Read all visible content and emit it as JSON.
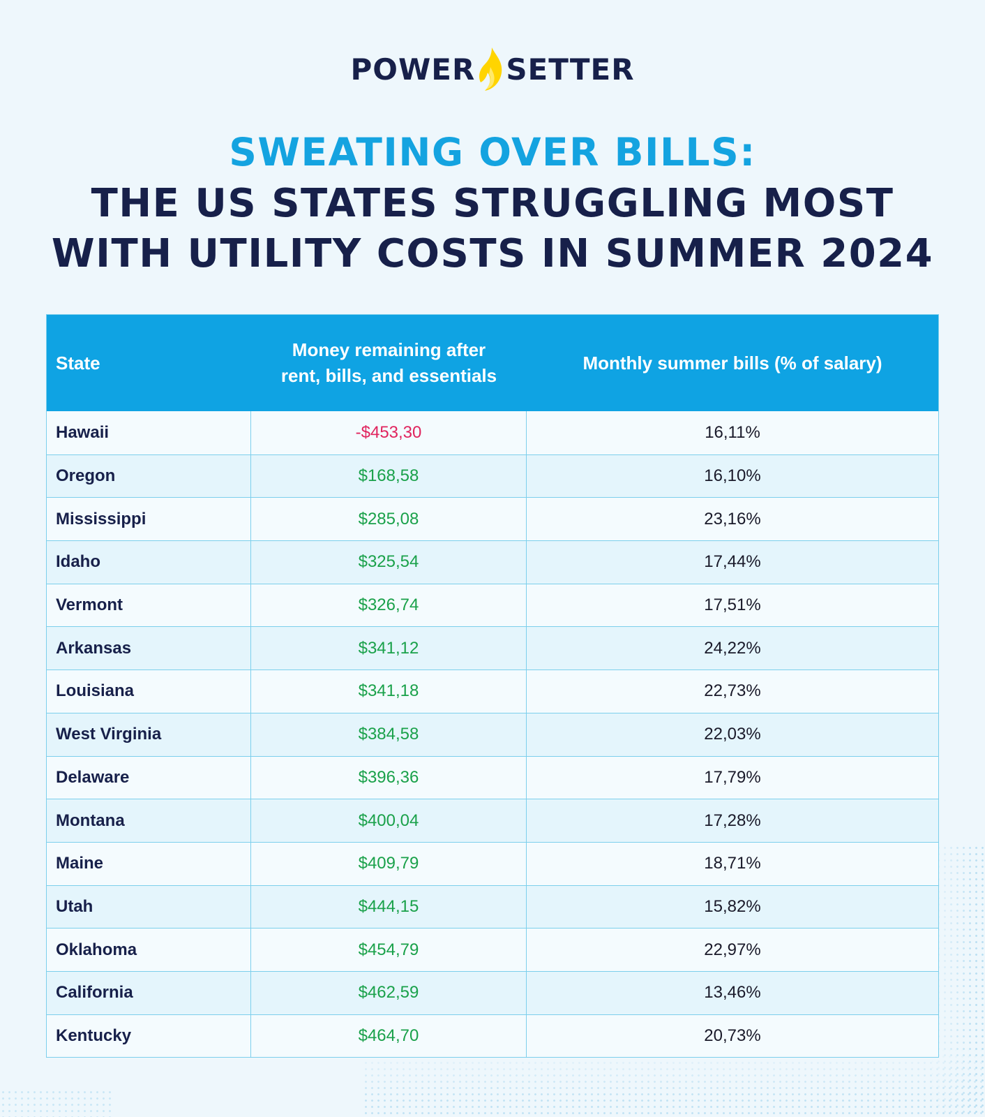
{
  "brand": {
    "part1": "POWER",
    "part2": "SETTER",
    "colors": {
      "navy": "#17204a",
      "blue": "#14a3e0",
      "flame": "#ffd400"
    }
  },
  "title": {
    "line1": "SWEATING OVER BILLS:",
    "line2": "THE US STATES STRUGGLING MOST",
    "line3": "WITH UTILITY COSTS IN SUMMER 2024"
  },
  "chart_data": {
    "type": "table",
    "columns": [
      "State",
      "Money remaining after\nrent, bills, and essentials",
      "Monthly summer bills (% of salary)"
    ],
    "rows": [
      {
        "state": "Hawaii",
        "money": "-$453,30",
        "pct": "16,11%",
        "negative": true
      },
      {
        "state": "Oregon",
        "money": "$168,58",
        "pct": "16,10%"
      },
      {
        "state": "Mississippi",
        "money": "$285,08",
        "pct": "23,16%"
      },
      {
        "state": "Idaho",
        "money": "$325,54",
        "pct": "17,44%"
      },
      {
        "state": "Vermont",
        "money": "$326,74",
        "pct": "17,51%"
      },
      {
        "state": "Arkansas",
        "money": "$341,12",
        "pct": "24,22%"
      },
      {
        "state": "Louisiana",
        "money": "$341,18",
        "pct": "22,73%"
      },
      {
        "state": "West Virginia",
        "money": "$384,58",
        "pct": "22,03%"
      },
      {
        "state": "Delaware",
        "money": "$396,36",
        "pct": "17,79%"
      },
      {
        "state": "Montana",
        "money": "$400,04",
        "pct": "17,28%"
      },
      {
        "state": "Maine",
        "money": "$409,79",
        "pct": "18,71%"
      },
      {
        "state": "Utah",
        "money": "$444,15",
        "pct": "15,82%"
      },
      {
        "state": "Oklahoma",
        "money": "$454,79",
        "pct": "22,97%"
      },
      {
        "state": "California",
        "money": "$462,59",
        "pct": "13,46%"
      },
      {
        "state": "Kentucky",
        "money": "$464,70",
        "pct": "20,73%"
      }
    ],
    "colors": {
      "header": "#0fa3e3",
      "positive": "#1aa14a",
      "negative": "#e0245e"
    }
  }
}
